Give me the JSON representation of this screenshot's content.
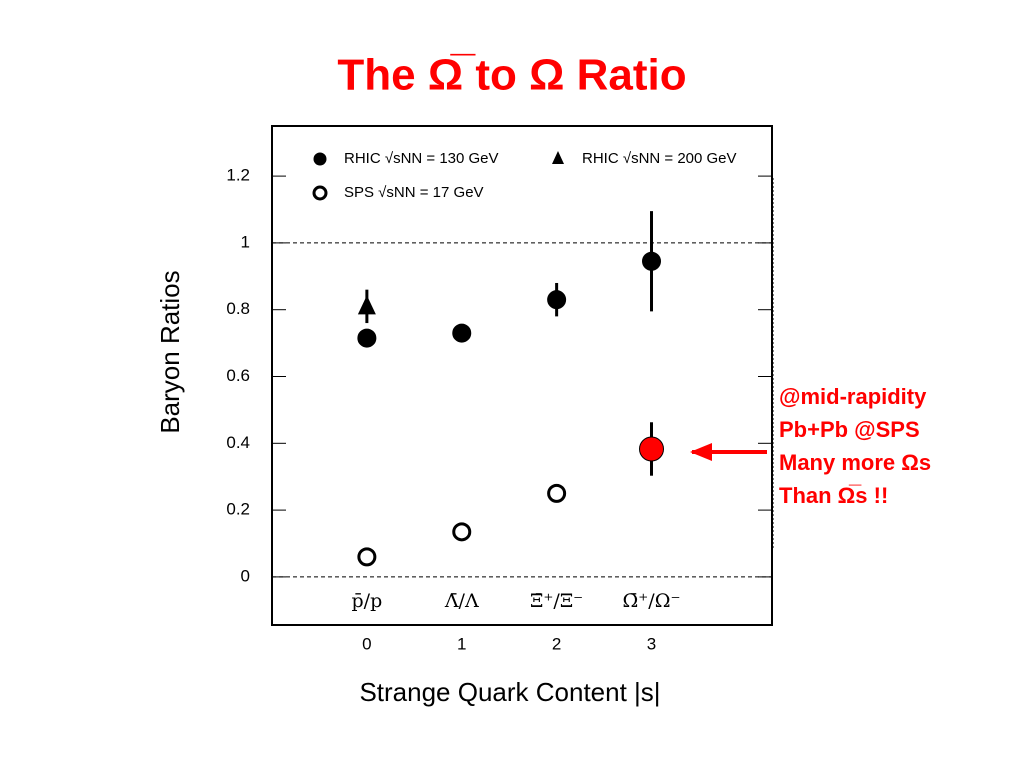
{
  "chart_data": {
    "type": "scatter",
    "title": "The Ω̅ to Ω Ratio",
    "x_label": "Strange Quark Content |s|",
    "y_label": "Baryon Ratios",
    "xlim": [
      -1.0,
      4.27
    ],
    "ylim": [
      -0.144,
      1.35
    ],
    "xticks": [
      0,
      1,
      2,
      3
    ],
    "yticks": [
      0,
      0.2,
      0.4,
      0.6,
      0.8,
      1,
      1.2
    ],
    "reference_lines": [
      0,
      1
    ],
    "category_positions": [
      0,
      1,
      2,
      3
    ],
    "categories": [
      "p̄/p",
      "Λ̄/Λ",
      "Ξ̄⁺/Ξ⁻",
      "Ω̄⁺/Ω⁻"
    ],
    "series": [
      {
        "name": "RHIC √sNN = 130 GeV",
        "marker": "circle",
        "filled": true,
        "color": "#000000",
        "x": [
          0,
          1,
          2,
          3
        ],
        "values": [
          0.715,
          0.73,
          0.83,
          0.945
        ],
        "errors": [
          0.012,
          0.015,
          0.05,
          0.15
        ]
      },
      {
        "name": "RHIC √sNN = 200 GeV",
        "marker": "triangle",
        "filled": true,
        "color": "#000000",
        "x": [
          0
        ],
        "values": [
          0.81
        ],
        "errors": [
          0.05
        ]
      },
      {
        "name": "SPS √sNN = 17 GeV",
        "marker": "circle",
        "filled": false,
        "color": "#000000",
        "highlight_color": "#ff0000",
        "highlight": [
          false,
          false,
          false,
          true
        ],
        "x": [
          0,
          1,
          2,
          3
        ],
        "values": [
          0.06,
          0.135,
          0.25,
          0.383
        ],
        "errors": [
          0,
          0,
          0,
          0.08
        ]
      }
    ],
    "annotation": [
      "@mid-rapidity",
      "Pb+Pb @SPS",
      "Many more Ωs",
      "Than Ω̅s !!"
    ],
    "annotation_color": "#ff0000"
  }
}
